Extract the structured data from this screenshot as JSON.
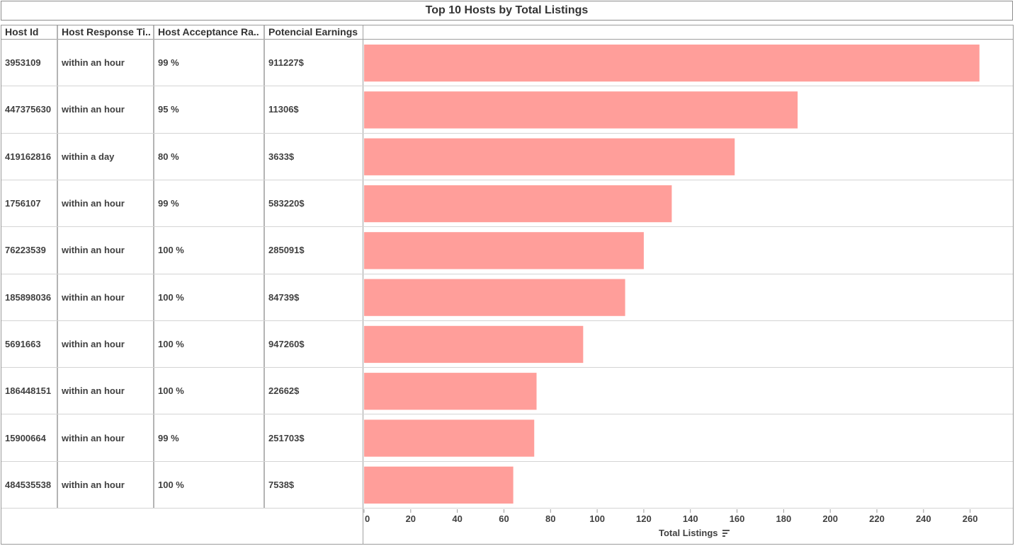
{
  "chart_data": {
    "type": "bar",
    "orientation": "horizontal",
    "title": "Top 10 Hosts by Total Listings",
    "columns": [
      "Host Id",
      "Host Response Ti..",
      "Host Acceptance Ra..",
      "Potencial Earnings"
    ],
    "rows": [
      {
        "host_id": "3953109",
        "response_time": "within an hour",
        "acceptance_rate": "99 %",
        "earnings": "911227$",
        "total_listings": 264
      },
      {
        "host_id": "447375630",
        "response_time": "within an hour",
        "acceptance_rate": "95 %",
        "earnings": "11306$",
        "total_listings": 186
      },
      {
        "host_id": "419162816",
        "response_time": "within a day",
        "acceptance_rate": "80 %",
        "earnings": "3633$",
        "total_listings": 159
      },
      {
        "host_id": "1756107",
        "response_time": "within an hour",
        "acceptance_rate": "99 %",
        "earnings": "583220$",
        "total_listings": 132
      },
      {
        "host_id": "76223539",
        "response_time": "within an hour",
        "acceptance_rate": "100 %",
        "earnings": "285091$",
        "total_listings": 120
      },
      {
        "host_id": "185898036",
        "response_time": "within an hour",
        "acceptance_rate": "100 %",
        "earnings": "84739$",
        "total_listings": 112
      },
      {
        "host_id": "5691663",
        "response_time": "within an hour",
        "acceptance_rate": "100 %",
        "earnings": "947260$",
        "total_listings": 94
      },
      {
        "host_id": "186448151",
        "response_time": "within an hour",
        "acceptance_rate": "100 %",
        "earnings": "22662$",
        "total_listings": 74
      },
      {
        "host_id": "15900664",
        "response_time": "within an hour",
        "acceptance_rate": "99 %",
        "earnings": "251703$",
        "total_listings": 73
      },
      {
        "host_id": "484535538",
        "response_time": "within an hour",
        "acceptance_rate": "100 %",
        "earnings": "7538$",
        "total_listings": 64
      }
    ],
    "xlabel": "Total Listings",
    "xlim": [
      0,
      275
    ],
    "xticks": [
      0,
      20,
      40,
      60,
      80,
      100,
      120,
      140,
      160,
      180,
      200,
      220,
      240,
      260
    ],
    "bar_color": "#ff9e9a",
    "grid": false,
    "sorted": "descending",
    "sort_icon": "sort-descending-icon"
  }
}
